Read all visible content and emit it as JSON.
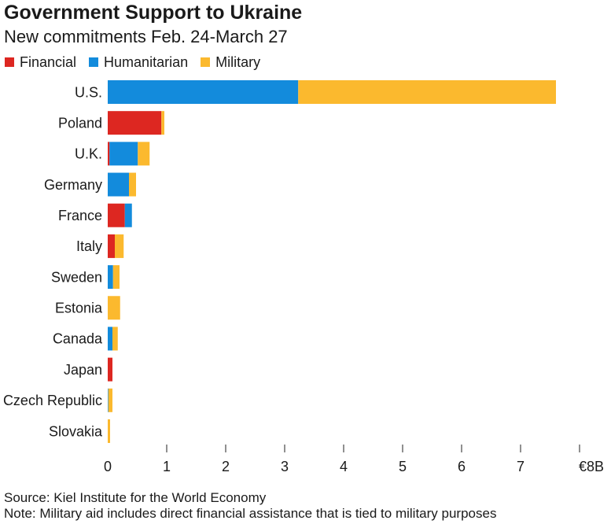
{
  "chart_data": {
    "type": "bar",
    "orientation": "horizontal",
    "stacked": true,
    "title": "Government Support to Ukraine",
    "subtitle": "New commitments Feb. 24-March 27",
    "categories": [
      "U.S.",
      "Poland",
      "U.K.",
      "Germany",
      "France",
      "Italy",
      "Sweden",
      "Estonia",
      "Canada",
      "Japan",
      "Czech Republic",
      "Slovakia"
    ],
    "series": [
      {
        "name": "Financial",
        "color": "#dd2721",
        "values": [
          0,
          0.91,
          0.03,
          0,
          0.29,
          0.12,
          0,
          0,
          0,
          0.08,
          0,
          0
        ]
      },
      {
        "name": "Humanitarian",
        "color": "#138bdc",
        "values": [
          3.23,
          0,
          0.48,
          0.36,
          0.12,
          0,
          0.09,
          0,
          0.08,
          0,
          0.01,
          0
        ]
      },
      {
        "name": "Military",
        "color": "#fbb92e",
        "values": [
          4.37,
          0.05,
          0.2,
          0.12,
          0,
          0.15,
          0.11,
          0.21,
          0.09,
          0,
          0.07,
          0.04
        ]
      }
    ],
    "xlabel": "",
    "ylabel": "",
    "xlim": [
      0,
      8
    ],
    "xticks": [
      0,
      1,
      2,
      3,
      4,
      5,
      6,
      7,
      8
    ],
    "xtick_labels": [
      "0",
      "1",
      "2",
      "3",
      "4",
      "5",
      "6",
      "7",
      "€8B"
    ],
    "grid": false,
    "legend": "top-left"
  },
  "footer": {
    "source": "Source: Kiel Institute for the World Economy",
    "note": "Note: Military aid includes direct financial assistance that is tied to military purposes"
  }
}
